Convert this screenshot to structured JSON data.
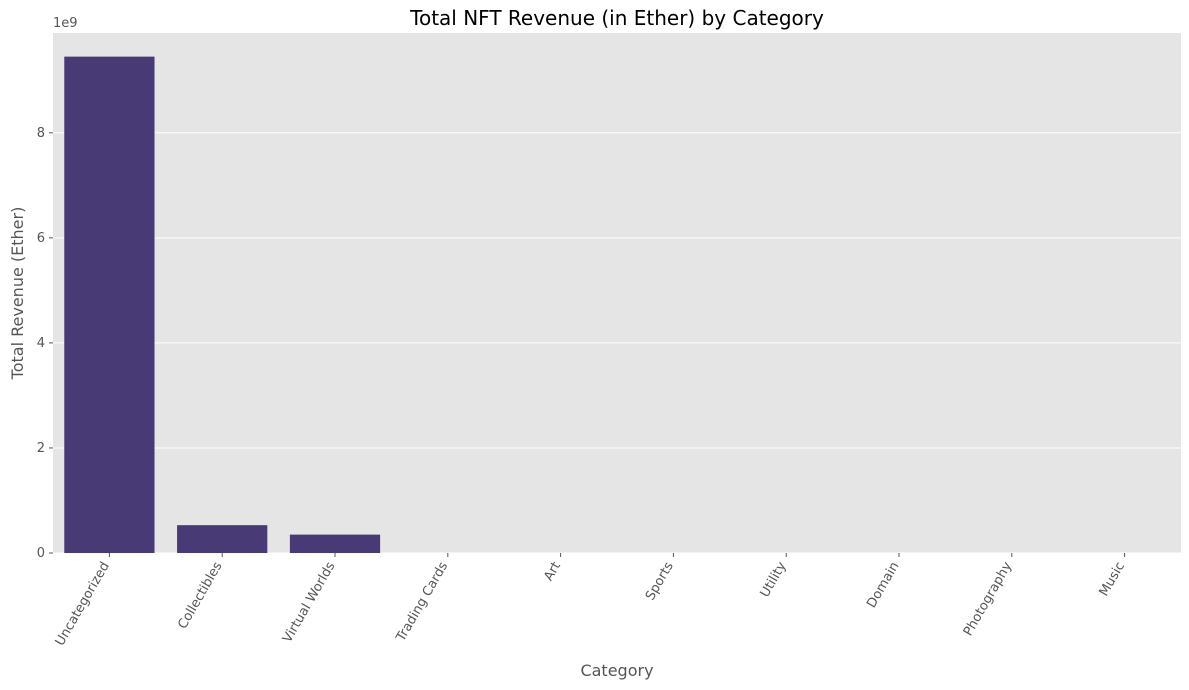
{
  "chart_data": {
    "type": "bar",
    "title": "Total NFT Revenue (in Ether) by Category",
    "xlabel": "Category",
    "ylabel": "Total Revenue (Ether)",
    "y_offset_label": "1e9",
    "categories": [
      "Uncategorized",
      "Collectibles",
      "Virtual Worlds",
      "Trading Cards",
      "Art",
      "Sports",
      "Utility",
      "Domain",
      "Photography",
      "Music"
    ],
    "values": [
      9450000000,
      530000000,
      350000000,
      0,
      0,
      0,
      0,
      0,
      0,
      0
    ],
    "yticks": [
      0,
      2,
      4,
      6,
      8
    ],
    "ytick_scale": 1000000000,
    "ylim": [
      0,
      9900000000
    ],
    "grid": true,
    "legend": "none",
    "colors": {
      "bar": "#483a75",
      "plot_background": "#e5e5e5",
      "grid": "#ffffff",
      "text": "#555555"
    }
  }
}
